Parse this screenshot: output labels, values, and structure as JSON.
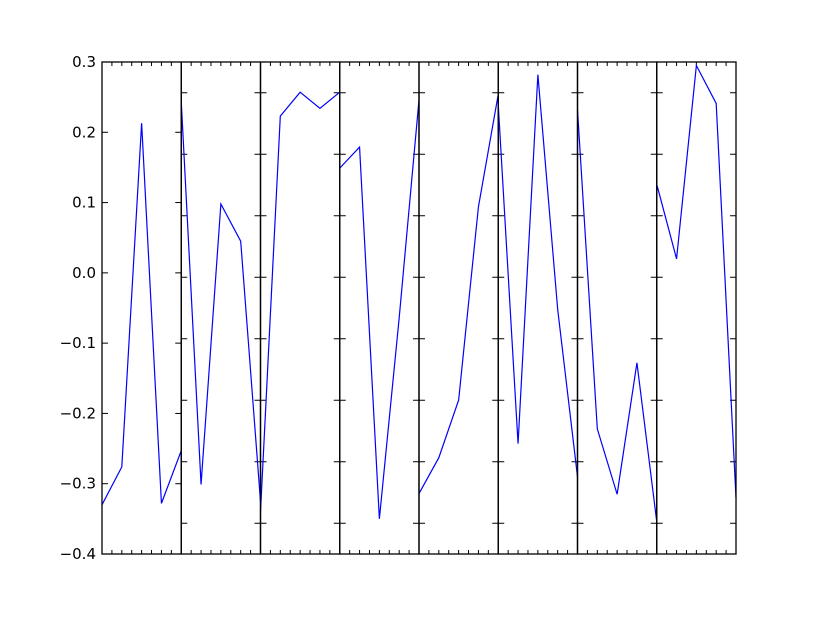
{
  "chart_data": {
    "type": "line",
    "title": "",
    "xlabel": "",
    "ylabel": "",
    "ylim": [
      -0.4,
      0.3
    ],
    "y_ticks": [
      -0.4,
      -0.3,
      -0.2,
      -0.1,
      0.0,
      0.1,
      0.2,
      0.3
    ],
    "y_tick_labels": [
      "−0.4",
      "−0.3",
      "−0.2",
      "−0.1",
      "0.0",
      "0.1",
      "0.2",
      "0.3"
    ],
    "x_tick_labels_visible": false,
    "grid": false,
    "line_color": "#0000ff",
    "axis_color": "#000000",
    "panels": [
      {
        "values": [
          -0.33,
          -0.276,
          0.213,
          -0.328,
          -0.253
        ]
      },
      {
        "values": [
          0.244,
          -0.301,
          0.098,
          0.045,
          -0.325
        ]
      },
      {
        "values": [
          -0.34,
          0.223,
          0.257,
          0.234,
          0.257
        ]
      },
      {
        "values": [
          0.149,
          0.179,
          -0.35,
          -0.064,
          0.246
        ]
      },
      {
        "values": [
          -0.314,
          -0.263,
          -0.181,
          0.094,
          0.254
        ]
      },
      {
        "values": [
          0.239,
          -0.243,
          0.282,
          -0.052,
          -0.29
        ]
      },
      {
        "values": [
          0.232,
          -0.222,
          -0.315,
          -0.128,
          -0.354
        ]
      },
      {
        "values": [
          0.126,
          0.02,
          0.295,
          0.241,
          -0.32
        ]
      }
    ]
  }
}
